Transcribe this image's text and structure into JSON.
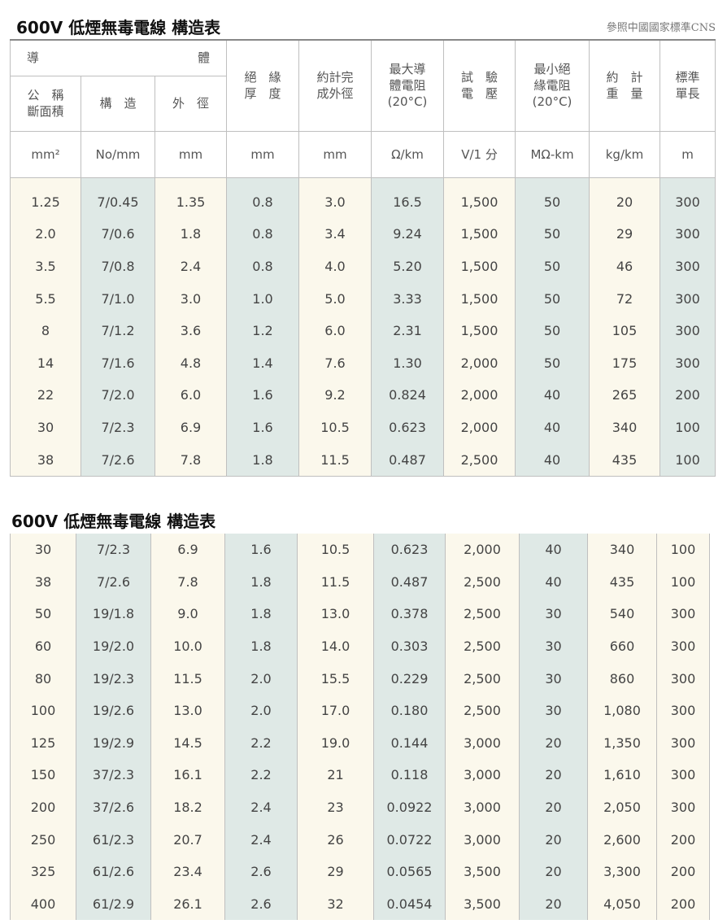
{
  "titles": {
    "main": "600V 低煙無毒電線 構造表",
    "continued": "600V 低煙無毒電線 構造表",
    "reference": "參照中國國家標準CNS"
  },
  "headers": {
    "conductor": "導　　　　　　　　　體",
    "nominal_area": "公　稱 斷面積",
    "structure": "構　造",
    "outer_diameter": "外　徑",
    "insulation_thickness": "絕　緣 厚　度",
    "finished_od": "約計完 成外徑",
    "max_resistance": "最大導 體電阻 (20°C)",
    "test_voltage": "試　驗 電　壓",
    "min_insulation_resistance": "最小絕 緣電阻 (20°C)",
    "approx_weight": "約　計 重　量",
    "standard_length": "標準 單長"
  },
  "units": [
    "mm²",
    "No/mm",
    "mm",
    "mm",
    "mm",
    "Ω/km",
    "V/1 分",
    "MΩ-km",
    "kg/km",
    "m"
  ],
  "table1_rows": [
    [
      "1.25",
      "7/0.45",
      "1.35",
      "0.8",
      "3.0",
      "16.5",
      "1,500",
      "50",
      "20",
      "300"
    ],
    [
      "2.0",
      "7/0.6",
      "1.8",
      "0.8",
      "3.4",
      "9.24",
      "1,500",
      "50",
      "29",
      "300"
    ],
    [
      "3.5",
      "7/0.8",
      "2.4",
      "0.8",
      "4.0",
      "5.20",
      "1,500",
      "50",
      "46",
      "300"
    ],
    [
      "5.5",
      "7/1.0",
      "3.0",
      "1.0",
      "5.0",
      "3.33",
      "1,500",
      "50",
      "72",
      "300"
    ],
    [
      "8",
      "7/1.2",
      "3.6",
      "1.2",
      "6.0",
      "2.31",
      "1,500",
      "50",
      "105",
      "300"
    ],
    [
      "14",
      "7/1.6",
      "4.8",
      "1.4",
      "7.6",
      "1.30",
      "2,000",
      "50",
      "175",
      "300"
    ],
    [
      "22",
      "7/2.0",
      "6.0",
      "1.6",
      "9.2",
      "0.824",
      "2,000",
      "40",
      "265",
      "200"
    ],
    [
      "30",
      "7/2.3",
      "6.9",
      "1.6",
      "10.5",
      "0.623",
      "2,000",
      "40",
      "340",
      "100"
    ],
    [
      "38",
      "7/2.6",
      "7.8",
      "1.8",
      "11.5",
      "0.487",
      "2,500",
      "40",
      "435",
      "100"
    ]
  ],
  "table2_rows": [
    [
      "30",
      "7/2.3",
      "6.9",
      "1.6",
      "10.5",
      "0.623",
      "2,000",
      "40",
      "340",
      "100"
    ],
    [
      "38",
      "7/2.6",
      "7.8",
      "1.8",
      "11.5",
      "0.487",
      "2,500",
      "40",
      "435",
      "100"
    ],
    [
      "50",
      "19/1.8",
      "9.0",
      "1.8",
      "13.0",
      "0.378",
      "2,500",
      "30",
      "540",
      "300"
    ],
    [
      "60",
      "19/2.0",
      "10.0",
      "1.8",
      "14.0",
      "0.303",
      "2,500",
      "30",
      "660",
      "300"
    ],
    [
      "80",
      "19/2.3",
      "11.5",
      "2.0",
      "15.5",
      "0.229",
      "2,500",
      "30",
      "860",
      "300"
    ],
    [
      "100",
      "19/2.6",
      "13.0",
      "2.0",
      "17.0",
      "0.180",
      "2,500",
      "30",
      "1,080",
      "300"
    ],
    [
      "125",
      "19/2.9",
      "14.5",
      "2.2",
      "19.0",
      "0.144",
      "3,000",
      "20",
      "1,350",
      "300"
    ],
    [
      "150",
      "37/2.3",
      "16.1",
      "2.2",
      "21",
      "0.118",
      "3,000",
      "20",
      "1,610",
      "300"
    ],
    [
      "200",
      "37/2.6",
      "18.2",
      "2.4",
      "23",
      "0.0922",
      "3,000",
      "20",
      "2,050",
      "300"
    ],
    [
      "250",
      "61/2.3",
      "20.7",
      "2.4",
      "26",
      "0.0722",
      "3,000",
      "20",
      "2,600",
      "200"
    ],
    [
      "325",
      "61/2.6",
      "23.4",
      "2.6",
      "29",
      "0.0565",
      "3,500",
      "20",
      "3,300",
      "200"
    ],
    [
      "400",
      "61/2.9",
      "26.1",
      "2.6",
      "32",
      "0.0454",
      "3,500",
      "20",
      "4,050",
      "200"
    ]
  ],
  "colors": {
    "shaded_column": "#dfe9e6",
    "warm_column": "#fbf8ec",
    "grid_line": "#bfbfbf"
  }
}
